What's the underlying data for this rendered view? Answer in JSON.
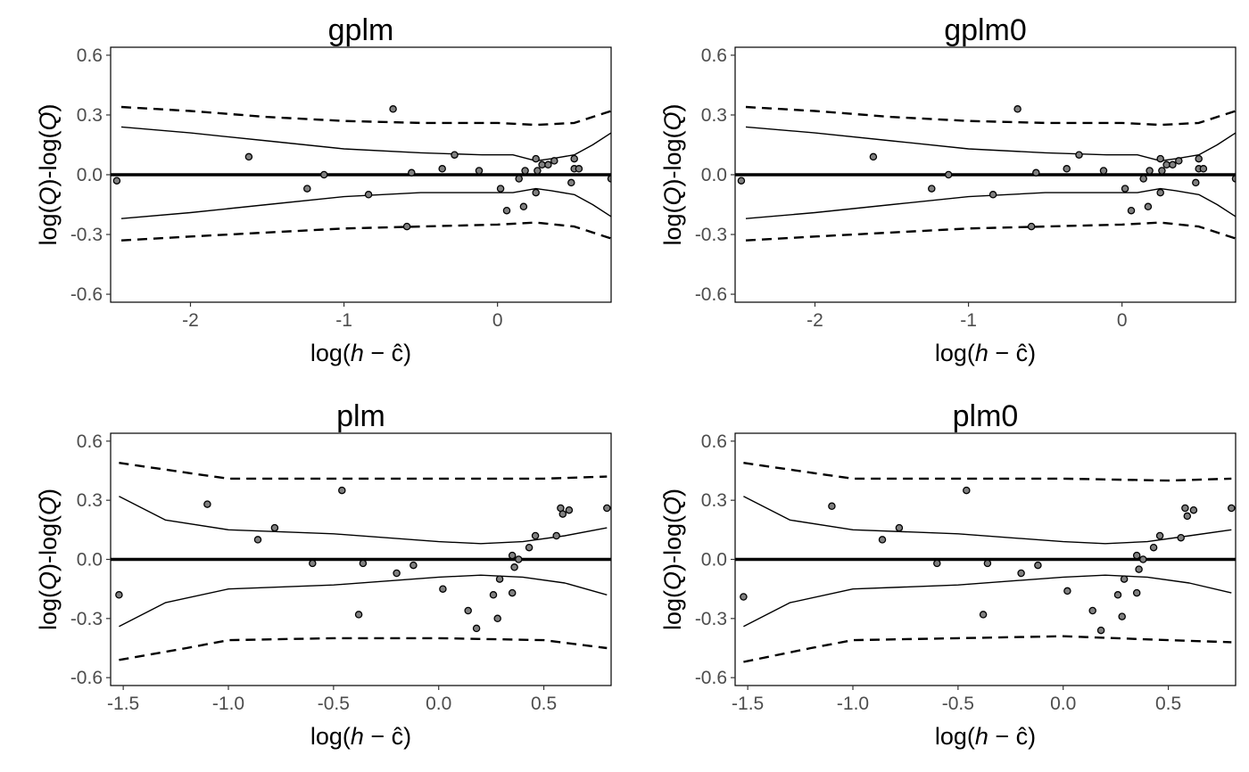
{
  "chart_data": [
    {
      "type": "scatter",
      "title": "gplm",
      "xlabel": "log(h − ĉ)",
      "ylabel": "log(Q)-log(Q̂)",
      "xlim": [
        -2.52,
        0.74
      ],
      "ylim": [
        -0.64,
        0.64
      ],
      "xticks": [
        -2,
        -1,
        0
      ],
      "yticks": [
        -0.6,
        -0.3,
        0.0,
        0.3,
        0.6
      ],
      "ytick_labels": [
        "-0.6",
        "-0.3",
        "0.0",
        "0.3",
        "0.6"
      ],
      "grid": false,
      "points": [
        [
          -2.48,
          -0.03
        ],
        [
          -1.62,
          0.09
        ],
        [
          -1.24,
          -0.07
        ],
        [
          -1.13,
          0.0
        ],
        [
          -0.84,
          -0.1
        ],
        [
          -0.68,
          0.33
        ],
        [
          -0.59,
          -0.26
        ],
        [
          -0.56,
          0.01
        ],
        [
          -0.36,
          0.03
        ],
        [
          -0.28,
          0.1
        ],
        [
          -0.12,
          0.02
        ],
        [
          0.02,
          -0.07
        ],
        [
          0.06,
          -0.18
        ],
        [
          0.14,
          -0.02
        ],
        [
          0.17,
          -0.16
        ],
        [
          0.18,
          0.02
        ],
        [
          0.25,
          0.08
        ],
        [
          0.25,
          -0.09
        ],
        [
          0.26,
          0.02
        ],
        [
          0.29,
          0.05
        ],
        [
          0.33,
          0.05
        ],
        [
          0.37,
          0.07
        ],
        [
          0.48,
          -0.04
        ],
        [
          0.5,
          0.08
        ],
        [
          0.5,
          0.03
        ],
        [
          0.53,
          0.03
        ],
        [
          0.74,
          -0.02
        ]
      ],
      "series": [
        {
          "style": "solid-thin",
          "x": [
            -2.45,
            -2.0,
            -1.5,
            -1.0,
            -0.5,
            -0.1,
            0.1,
            0.25,
            0.35,
            0.5,
            0.62,
            0.74
          ],
          "y": [
            0.24,
            0.21,
            0.17,
            0.13,
            0.11,
            0.1,
            0.1,
            0.07,
            0.08,
            0.1,
            0.15,
            0.21
          ]
        },
        {
          "style": "solid-thin",
          "x": [
            -2.45,
            -2.0,
            -1.5,
            -1.0,
            -0.5,
            -0.1,
            0.1,
            0.25,
            0.35,
            0.5,
            0.62,
            0.74
          ],
          "y": [
            -0.22,
            -0.19,
            -0.15,
            -0.11,
            -0.09,
            -0.09,
            -0.09,
            -0.07,
            -0.08,
            -0.1,
            -0.15,
            -0.21
          ]
        },
        {
          "style": "dashed",
          "x": [
            -2.45,
            -2.0,
            -1.5,
            -1.0,
            -0.5,
            0.0,
            0.25,
            0.5,
            0.74
          ],
          "y": [
            0.34,
            0.32,
            0.29,
            0.27,
            0.26,
            0.26,
            0.25,
            0.26,
            0.32
          ]
        },
        {
          "style": "dashed",
          "x": [
            -2.45,
            -2.0,
            -1.5,
            -1.0,
            -0.5,
            0.0,
            0.25,
            0.5,
            0.74
          ],
          "y": [
            -0.33,
            -0.31,
            -0.29,
            -0.27,
            -0.26,
            -0.25,
            -0.24,
            -0.26,
            -0.32
          ]
        },
        {
          "style": "solid-thick",
          "x": [
            -2.52,
            0.74
          ],
          "y": [
            0.0,
            0.0
          ]
        }
      ]
    },
    {
      "type": "scatter",
      "title": "gplm0",
      "xlabel": "log(h − ĉ)",
      "ylabel": "log(Q)-log(Q̂)",
      "xlim": [
        -2.52,
        0.74
      ],
      "ylim": [
        -0.64,
        0.64
      ],
      "xticks": [
        -2,
        -1,
        0
      ],
      "yticks": [
        -0.6,
        -0.3,
        0.0,
        0.3,
        0.6
      ],
      "ytick_labels": [
        "-0.6",
        "-0.3",
        "0.0",
        "0.3",
        "0.6"
      ],
      "grid": false,
      "points": [
        [
          -2.48,
          -0.03
        ],
        [
          -1.62,
          0.09
        ],
        [
          -1.24,
          -0.07
        ],
        [
          -1.13,
          0.0
        ],
        [
          -0.84,
          -0.1
        ],
        [
          -0.68,
          0.33
        ],
        [
          -0.59,
          -0.26
        ],
        [
          -0.56,
          0.01
        ],
        [
          -0.36,
          0.03
        ],
        [
          -0.28,
          0.1
        ],
        [
          -0.12,
          0.02
        ],
        [
          0.02,
          -0.07
        ],
        [
          0.06,
          -0.18
        ],
        [
          0.14,
          -0.02
        ],
        [
          0.17,
          -0.16
        ],
        [
          0.18,
          0.02
        ],
        [
          0.25,
          0.08
        ],
        [
          0.25,
          -0.09
        ],
        [
          0.26,
          0.02
        ],
        [
          0.29,
          0.05
        ],
        [
          0.33,
          0.05
        ],
        [
          0.37,
          0.07
        ],
        [
          0.48,
          -0.04
        ],
        [
          0.5,
          0.08
        ],
        [
          0.5,
          0.03
        ],
        [
          0.53,
          0.03
        ],
        [
          0.74,
          -0.02
        ]
      ],
      "series": [
        {
          "style": "solid-thin",
          "x": [
            -2.45,
            -2.0,
            -1.5,
            -1.0,
            -0.5,
            -0.1,
            0.1,
            0.25,
            0.35,
            0.5,
            0.62,
            0.74
          ],
          "y": [
            0.24,
            0.21,
            0.17,
            0.13,
            0.11,
            0.1,
            0.1,
            0.07,
            0.08,
            0.1,
            0.15,
            0.21
          ]
        },
        {
          "style": "solid-thin",
          "x": [
            -2.45,
            -2.0,
            -1.5,
            -1.0,
            -0.5,
            -0.1,
            0.1,
            0.25,
            0.35,
            0.5,
            0.62,
            0.74
          ],
          "y": [
            -0.22,
            -0.19,
            -0.15,
            -0.11,
            -0.09,
            -0.09,
            -0.09,
            -0.07,
            -0.08,
            -0.1,
            -0.15,
            -0.21
          ]
        },
        {
          "style": "dashed",
          "x": [
            -2.45,
            -2.0,
            -1.5,
            -1.0,
            -0.5,
            0.0,
            0.25,
            0.5,
            0.74
          ],
          "y": [
            0.34,
            0.32,
            0.29,
            0.27,
            0.26,
            0.26,
            0.25,
            0.26,
            0.32
          ]
        },
        {
          "style": "dashed",
          "x": [
            -2.45,
            -2.0,
            -1.5,
            -1.0,
            -0.5,
            0.0,
            0.25,
            0.5,
            0.74
          ],
          "y": [
            -0.33,
            -0.31,
            -0.29,
            -0.27,
            -0.26,
            -0.25,
            -0.24,
            -0.26,
            -0.32
          ]
        },
        {
          "style": "solid-thick",
          "x": [
            -2.52,
            0.74
          ],
          "y": [
            0.0,
            0.0
          ]
        }
      ]
    },
    {
      "type": "scatter",
      "title": "plm",
      "xlabel": "log(h − ĉ)",
      "ylabel": "log(Q)-log(Q̂)",
      "xlim": [
        -1.56,
        0.82
      ],
      "ylim": [
        -0.64,
        0.64
      ],
      "xticks": [
        -1.5,
        -1.0,
        -0.5,
        0.0,
        0.5
      ],
      "xtick_labels": [
        "-1.5",
        "-1.0",
        "-0.5",
        "0.0",
        "0.5"
      ],
      "yticks": [
        -0.6,
        -0.3,
        0.0,
        0.3,
        0.6
      ],
      "ytick_labels": [
        "-0.6",
        "-0.3",
        "0.0",
        "0.3",
        "0.6"
      ],
      "grid": false,
      "points": [
        [
          -1.52,
          -0.18
        ],
        [
          -1.1,
          0.28
        ],
        [
          -0.86,
          0.1
        ],
        [
          -0.78,
          0.16
        ],
        [
          -0.6,
          -0.02
        ],
        [
          -0.46,
          0.35
        ],
        [
          -0.38,
          -0.28
        ],
        [
          -0.36,
          -0.02
        ],
        [
          -0.2,
          -0.07
        ],
        [
          -0.12,
          -0.03
        ],
        [
          0.02,
          -0.15
        ],
        [
          0.14,
          -0.26
        ],
        [
          0.18,
          -0.35
        ],
        [
          0.26,
          -0.18
        ],
        [
          0.28,
          -0.3
        ],
        [
          0.29,
          -0.1
        ],
        [
          0.35,
          -0.17
        ],
        [
          0.35,
          0.02
        ],
        [
          0.36,
          -0.04
        ],
        [
          0.38,
          0.0
        ],
        [
          0.43,
          0.06
        ],
        [
          0.46,
          0.12
        ],
        [
          0.56,
          0.12
        ],
        [
          0.58,
          0.26
        ],
        [
          0.59,
          0.23
        ],
        [
          0.62,
          0.25
        ],
        [
          0.8,
          0.26
        ]
      ],
      "series": [
        {
          "style": "solid-thin",
          "x": [
            -1.52,
            -1.3,
            -1.0,
            -0.5,
            0.0,
            0.2,
            0.4,
            0.6,
            0.8
          ],
          "y": [
            0.32,
            0.2,
            0.15,
            0.13,
            0.09,
            0.08,
            0.09,
            0.12,
            0.16
          ]
        },
        {
          "style": "solid-thin",
          "x": [
            -1.52,
            -1.3,
            -1.0,
            -0.5,
            0.0,
            0.2,
            0.4,
            0.6,
            0.8
          ],
          "y": [
            -0.34,
            -0.22,
            -0.15,
            -0.13,
            -0.09,
            -0.08,
            -0.09,
            -0.12,
            -0.18
          ]
        },
        {
          "style": "dashed",
          "x": [
            -1.52,
            -1.2,
            -1.0,
            -0.5,
            0.0,
            0.5,
            0.8
          ],
          "y": [
            0.49,
            0.44,
            0.41,
            0.41,
            0.41,
            0.41,
            0.42
          ]
        },
        {
          "style": "dashed",
          "x": [
            -1.52,
            -1.2,
            -1.0,
            -0.5,
            0.0,
            0.5,
            0.8
          ],
          "y": [
            -0.51,
            -0.45,
            -0.41,
            -0.4,
            -0.4,
            -0.41,
            -0.45
          ]
        },
        {
          "style": "solid-thick",
          "x": [
            -1.56,
            0.82
          ],
          "y": [
            0.0,
            0.0
          ]
        }
      ]
    },
    {
      "type": "scatter",
      "title": "plm0",
      "xlabel": "log(h − ĉ)",
      "ylabel": "log(Q)-log(Q̂)",
      "xlim": [
        -1.56,
        0.82
      ],
      "ylim": [
        -0.64,
        0.64
      ],
      "xticks": [
        -1.5,
        -1.0,
        -0.5,
        0.0,
        0.5
      ],
      "xtick_labels": [
        "-1.5",
        "-1.0",
        "-0.5",
        "0.0",
        "0.5"
      ],
      "yticks": [
        -0.6,
        -0.3,
        0.0,
        0.3,
        0.6
      ],
      "ytick_labels": [
        "-0.6",
        "-0.3",
        "0.0",
        "0.3",
        "0.6"
      ],
      "grid": false,
      "points": [
        [
          -1.52,
          -0.19
        ],
        [
          -1.1,
          0.27
        ],
        [
          -0.86,
          0.1
        ],
        [
          -0.78,
          0.16
        ],
        [
          -0.6,
          -0.02
        ],
        [
          -0.46,
          0.35
        ],
        [
          -0.38,
          -0.28
        ],
        [
          -0.36,
          -0.02
        ],
        [
          -0.2,
          -0.07
        ],
        [
          -0.12,
          -0.03
        ],
        [
          0.02,
          -0.16
        ],
        [
          0.14,
          -0.26
        ],
        [
          0.18,
          -0.36
        ],
        [
          0.26,
          -0.18
        ],
        [
          0.28,
          -0.29
        ],
        [
          0.29,
          -0.1
        ],
        [
          0.35,
          -0.17
        ],
        [
          0.35,
          0.02
        ],
        [
          0.36,
          -0.05
        ],
        [
          0.38,
          0.0
        ],
        [
          0.43,
          0.06
        ],
        [
          0.46,
          0.12
        ],
        [
          0.56,
          0.11
        ],
        [
          0.58,
          0.26
        ],
        [
          0.59,
          0.22
        ],
        [
          0.62,
          0.25
        ],
        [
          0.8,
          0.26
        ]
      ],
      "series": [
        {
          "style": "solid-thin",
          "x": [
            -1.52,
            -1.3,
            -1.0,
            -0.5,
            0.0,
            0.2,
            0.4,
            0.6,
            0.8
          ],
          "y": [
            0.32,
            0.2,
            0.15,
            0.13,
            0.09,
            0.08,
            0.09,
            0.12,
            0.15
          ]
        },
        {
          "style": "solid-thin",
          "x": [
            -1.52,
            -1.3,
            -1.0,
            -0.5,
            0.0,
            0.2,
            0.4,
            0.6,
            0.8
          ],
          "y": [
            -0.34,
            -0.22,
            -0.15,
            -0.13,
            -0.09,
            -0.08,
            -0.09,
            -0.12,
            -0.17
          ]
        },
        {
          "style": "dashed",
          "x": [
            -1.52,
            -1.2,
            -1.0,
            -0.5,
            0.0,
            0.5,
            0.8
          ],
          "y": [
            0.49,
            0.44,
            0.41,
            0.41,
            0.41,
            0.4,
            0.41
          ]
        },
        {
          "style": "dashed",
          "x": [
            -1.52,
            -1.2,
            -1.0,
            -0.5,
            0.0,
            0.5,
            0.8
          ],
          "y": [
            -0.52,
            -0.45,
            -0.41,
            -0.4,
            -0.39,
            -0.41,
            -0.42
          ]
        },
        {
          "style": "solid-thick",
          "x": [
            -1.56,
            0.82
          ],
          "y": [
            0.0,
            0.0
          ]
        }
      ]
    }
  ]
}
